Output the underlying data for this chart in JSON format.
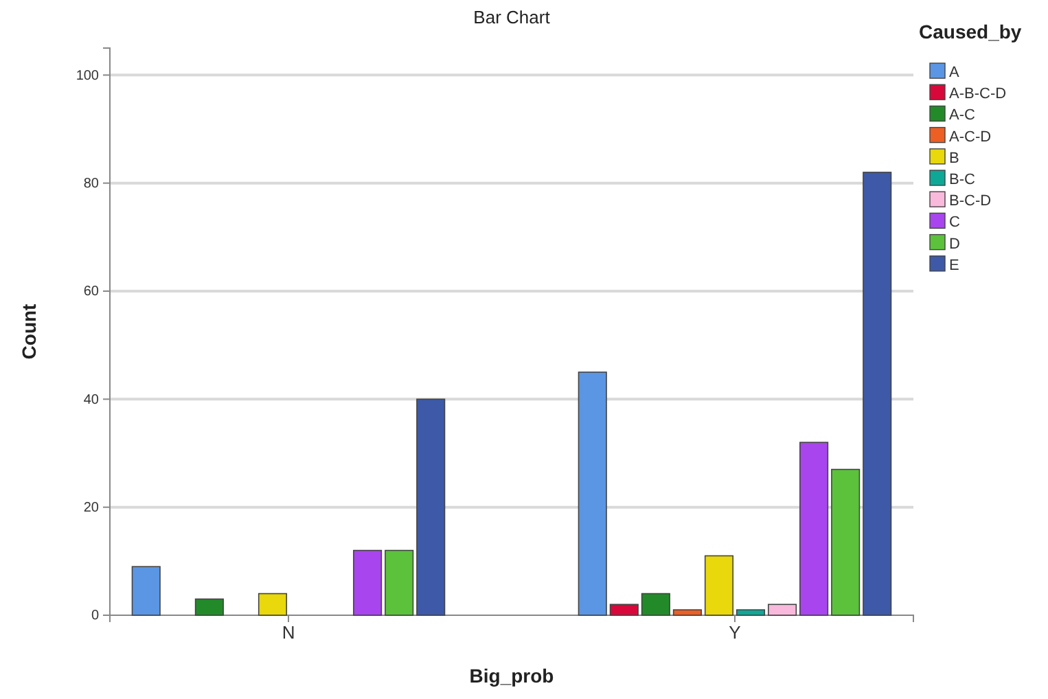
{
  "chart_data": {
    "type": "bar",
    "title": "Bar Chart",
    "xlabel": "Big_prob",
    "ylabel": "Count",
    "legend_title": "Caused_by",
    "categories": [
      "N",
      "Y"
    ],
    "series": [
      {
        "name": "A",
        "color": "#5a96e4",
        "values": [
          9,
          45
        ]
      },
      {
        "name": "A-B-C-D",
        "color": "#d9083a",
        "values": [
          null,
          2
        ]
      },
      {
        "name": "A-C",
        "color": "#238a2a",
        "values": [
          3,
          4
        ]
      },
      {
        "name": "A-C-D",
        "color": "#ee5f23",
        "values": [
          null,
          1
        ]
      },
      {
        "name": "B",
        "color": "#e8d80c",
        "values": [
          4,
          11
        ]
      },
      {
        "name": "B-C",
        "color": "#0ea897",
        "values": [
          null,
          1
        ]
      },
      {
        "name": "B-C-D",
        "color": "#f9b9dc",
        "values": [
          null,
          2
        ]
      },
      {
        "name": "C",
        "color": "#a845ee",
        "values": [
          12,
          32
        ]
      },
      {
        "name": "D",
        "color": "#5cc23c",
        "values": [
          12,
          27
        ]
      },
      {
        "name": "E",
        "color": "#3d59a8",
        "values": [
          40,
          82
        ]
      }
    ],
    "ylim": [
      0,
      105
    ],
    "yticks": [
      0,
      20,
      40,
      60,
      80,
      100
    ],
    "grid": "y",
    "legend": "right"
  }
}
